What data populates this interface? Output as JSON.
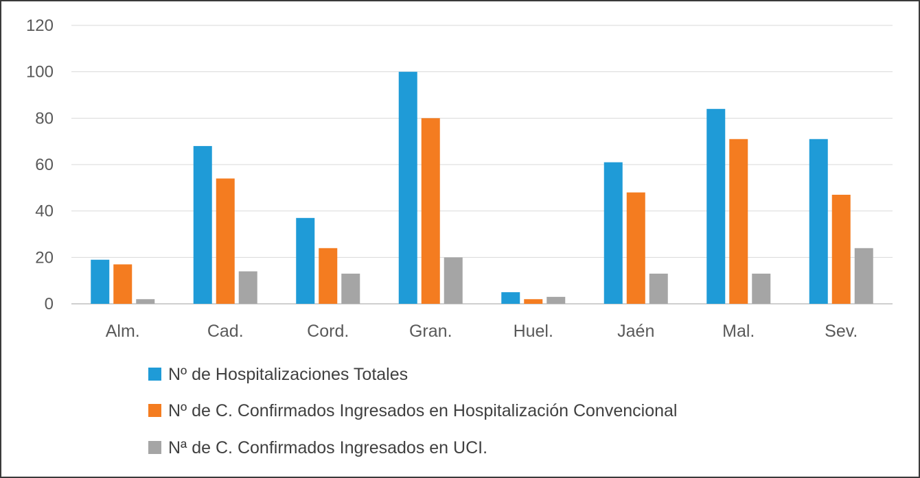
{
  "chart_data": {
    "type": "bar",
    "categories": [
      "Alm.",
      "Cad.",
      "Cord.",
      "Gran.",
      "Huel.",
      "Jaén",
      "Mal.",
      "Sev."
    ],
    "series": [
      {
        "name": "Nº de Hospitalizaciones Totales",
        "color": "#1f9bd7",
        "values": [
          19,
          68,
          37,
          100,
          5,
          61,
          84,
          71
        ]
      },
      {
        "name": "Nº de C. Confirmados Ingresados en Hospitalización Convencional",
        "color": "#f47c20",
        "values": [
          17,
          54,
          24,
          80,
          2,
          48,
          71,
          47
        ]
      },
      {
        "name": "Nª de C. Confirmados Ingresados en UCI.",
        "color": "#a5a5a5",
        "values": [
          2,
          14,
          13,
          20,
          3,
          13,
          13,
          24
        ]
      }
    ],
    "ylim": [
      0,
      120
    ],
    "yticks": [
      0,
      20,
      40,
      60,
      80,
      100,
      120
    ],
    "grid": true,
    "legend_position": "bottom",
    "xlabel": "",
    "ylabel": ""
  }
}
